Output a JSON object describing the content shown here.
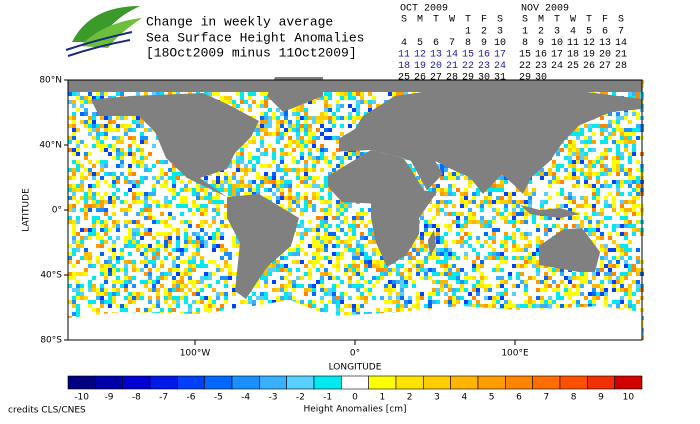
{
  "header": {
    "title": [
      "Change in weekly average",
      "Sea Surface Height Anomalies",
      "[18Oct2009 minus 11Oct2009]"
    ]
  },
  "calendars": [
    {
      "title": "OCT 2009",
      "weekdays": [
        "S",
        "M",
        "T",
        "W",
        "T",
        "F",
        "S"
      ],
      "weeks": [
        [
          null,
          null,
          null,
          null,
          1,
          2,
          3
        ],
        [
          4,
          5,
          6,
          7,
          8,
          9,
          10
        ],
        [
          11,
          12,
          13,
          14,
          15,
          16,
          17
        ],
        [
          18,
          19,
          20,
          21,
          22,
          23,
          24
        ],
        [
          25,
          26,
          27,
          28,
          29,
          30,
          31
        ]
      ],
      "highlight_weeks": [
        2,
        3
      ],
      "highlight_color": "#1a1aa0"
    },
    {
      "title": "NOV 2009",
      "weekdays": [
        "S",
        "M",
        "T",
        "W",
        "T",
        "F",
        "S"
      ],
      "weeks": [
        [
          1,
          2,
          3,
          4,
          5,
          6,
          7
        ],
        [
          8,
          9,
          10,
          11,
          12,
          13,
          14
        ],
        [
          15,
          16,
          17,
          18,
          19,
          20,
          21
        ],
        [
          22,
          23,
          24,
          25,
          26,
          27,
          28
        ],
        [
          29,
          30
        ]
      ],
      "highlight_weeks": [],
      "highlight_color": "#1a1aa0"
    }
  ],
  "map": {
    "lat_labels": [
      "80°N",
      "40°N",
      "0°",
      "40°S",
      "80°S"
    ],
    "lat_title": "LATITUDE",
    "lon_labels": [
      "100°W",
      "0°",
      "100°E"
    ],
    "lon_title": "LONGITUDE"
  },
  "colorbar": {
    "title": "Height Anomalies [cm]",
    "values": [
      -10,
      -9,
      -8,
      -7,
      -6,
      -5,
      -4,
      -3,
      -2,
      -1,
      0,
      1,
      2,
      3,
      4,
      5,
      6,
      7,
      8,
      9,
      10
    ],
    "colors": [
      "#000080",
      "#0000a8",
      "#0000d0",
      "#0018e8",
      "#0040f8",
      "#0068ff",
      "#1890ff",
      "#38b0ff",
      "#58d0ff",
      "#00e8f0",
      "#ffffff",
      "#ffff00",
      "#ffe400",
      "#ffcc00",
      "#ffb400",
      "#ff9c00",
      "#ff8400",
      "#ff6c00",
      "#ff5000",
      "#f03000",
      "#d00000"
    ]
  },
  "footer": {
    "credits": "credits CLS/CNES"
  }
}
